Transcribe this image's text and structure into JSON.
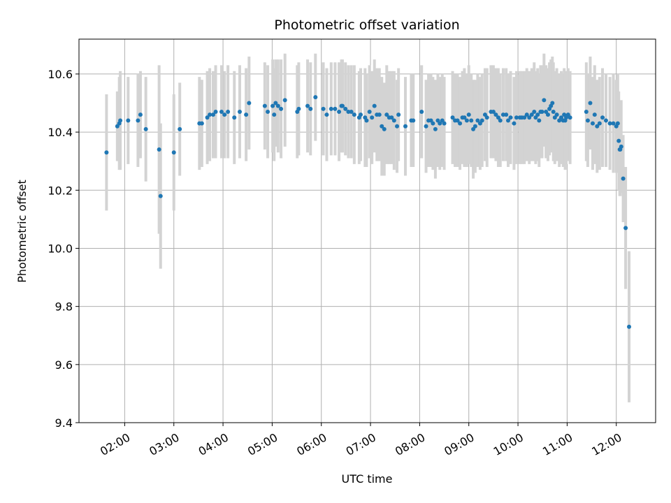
{
  "chart_data": {
    "type": "scatter",
    "title": "Photometric offset variation",
    "xlabel": "UTC time",
    "ylabel": "Photometric offset",
    "x_unit": "UTC hour of day",
    "xlim": [
      1.07,
      12.8
    ],
    "ylim": [
      9.4,
      10.72
    ],
    "x_ticks": [
      {
        "value": 2,
        "label": "02:00"
      },
      {
        "value": 3,
        "label": "03:00"
      },
      {
        "value": 4,
        "label": "04:00"
      },
      {
        "value": 5,
        "label": "05:00"
      },
      {
        "value": 6,
        "label": "06:00"
      },
      {
        "value": 7,
        "label": "07:00"
      },
      {
        "value": 8,
        "label": "08:00"
      },
      {
        "value": 9,
        "label": "09:00"
      },
      {
        "value": 10,
        "label": "10:00"
      },
      {
        "value": 11,
        "label": "11:00"
      },
      {
        "value": 12,
        "label": "12:00"
      }
    ],
    "y_ticks": [
      {
        "value": 9.4,
        "label": "9.4"
      },
      {
        "value": 9.6,
        "label": "9.6"
      },
      {
        "value": 9.8,
        "label": "9.8"
      },
      {
        "value": 10.0,
        "label": "10.0"
      },
      {
        "value": 10.2,
        "label": "10.2"
      },
      {
        "value": 10.4,
        "label": "10.4"
      },
      {
        "value": 10.6,
        "label": "10.6"
      }
    ],
    "grid": true,
    "point_color": "#1f77b4",
    "errorbar_color": "#d3d3d3",
    "series": [
      {
        "x": [
          1.63,
          1.85,
          1.89,
          1.91,
          2.07,
          2.27,
          2.32,
          2.43,
          2.7,
          2.73,
          3.0,
          3.12,
          3.52,
          3.57,
          3.68,
          3.73,
          3.8,
          3.85,
          3.97,
          4.03,
          4.1,
          4.23,
          4.34,
          4.47,
          4.53,
          4.85,
          4.91,
          5.01,
          5.04,
          5.07,
          5.12,
          5.18,
          5.26,
          5.51,
          5.54,
          5.72,
          5.78,
          5.88,
          6.04,
          6.11,
          6.2,
          6.28,
          6.36,
          6.41,
          6.43,
          6.49,
          6.55,
          6.61,
          6.67,
          6.77,
          6.8,
          6.89,
          6.92,
          6.98,
          7.03,
          7.08,
          7.13,
          7.18,
          7.23,
          7.28,
          7.33,
          7.38,
          7.43,
          7.48,
          7.54,
          7.57,
          7.71,
          7.83,
          7.87,
          8.04,
          8.13,
          8.18,
          8.23,
          8.27,
          8.32,
          8.37,
          8.41,
          8.46,
          8.5,
          8.67,
          8.72,
          8.77,
          8.82,
          8.87,
          8.91,
          8.96,
          9.0,
          9.05,
          9.09,
          9.13,
          9.18,
          9.23,
          9.27,
          9.33,
          9.37,
          9.45,
          9.5,
          9.55,
          9.6,
          9.64,
          9.7,
          9.76,
          9.8,
          9.85,
          9.92,
          9.97,
          10.04,
          10.08,
          10.13,
          10.18,
          10.23,
          10.28,
          10.33,
          10.36,
          10.4,
          10.43,
          10.46,
          10.49,
          10.53,
          10.57,
          10.61,
          10.64,
          10.67,
          10.7,
          10.72,
          10.75,
          10.79,
          10.84,
          10.88,
          10.92,
          10.94,
          10.96,
          10.98,
          11.02,
          11.06,
          11.39,
          11.42,
          11.47,
          11.52,
          11.56,
          11.61,
          11.66,
          11.72,
          11.79,
          11.87,
          11.94,
          12.0,
          12.03,
          12.05,
          12.07,
          12.08,
          12.1,
          12.14,
          12.19,
          12.26
        ],
        "y": [
          10.33,
          10.42,
          10.43,
          10.44,
          10.44,
          10.44,
          10.46,
          10.41,
          10.34,
          10.18,
          10.33,
          10.41,
          10.43,
          10.43,
          10.45,
          10.46,
          10.46,
          10.47,
          10.47,
          10.46,
          10.47,
          10.45,
          10.47,
          10.46,
          10.5,
          10.49,
          10.47,
          10.49,
          10.46,
          10.5,
          10.49,
          10.48,
          10.51,
          10.47,
          10.48,
          10.49,
          10.48,
          10.52,
          10.48,
          10.46,
          10.48,
          10.48,
          10.47,
          10.49,
          10.49,
          10.48,
          10.47,
          10.47,
          10.46,
          10.45,
          10.46,
          10.45,
          10.44,
          10.47,
          10.45,
          10.49,
          10.46,
          10.46,
          10.42,
          10.41,
          10.46,
          10.45,
          10.45,
          10.44,
          10.42,
          10.46,
          10.42,
          10.44,
          10.44,
          10.47,
          10.42,
          10.44,
          10.44,
          10.43,
          10.41,
          10.44,
          10.43,
          10.44,
          10.43,
          10.45,
          10.44,
          10.44,
          10.43,
          10.45,
          10.45,
          10.44,
          10.46,
          10.44,
          10.41,
          10.42,
          10.44,
          10.43,
          10.44,
          10.46,
          10.45,
          10.47,
          10.47,
          10.46,
          10.45,
          10.44,
          10.46,
          10.46,
          10.44,
          10.45,
          10.43,
          10.45,
          10.45,
          10.45,
          10.45,
          10.46,
          10.45,
          10.46,
          10.47,
          10.45,
          10.46,
          10.44,
          10.47,
          10.47,
          10.51,
          10.47,
          10.46,
          10.48,
          10.49,
          10.5,
          10.47,
          10.45,
          10.46,
          10.44,
          10.45,
          10.44,
          10.46,
          10.44,
          10.45,
          10.46,
          10.45,
          10.47,
          10.44,
          10.5,
          10.43,
          10.46,
          10.42,
          10.43,
          10.45,
          10.44,
          10.43,
          10.43,
          10.42,
          10.43,
          10.37,
          10.34,
          10.34,
          10.35,
          10.24,
          10.07,
          9.73
        ],
        "yerr": [
          0.2,
          0.12,
          0.16,
          0.17,
          0.15,
          0.16,
          0.15,
          0.18,
          0.29,
          0.25,
          0.2,
          0.16,
          0.16,
          0.15,
          0.16,
          0.16,
          0.15,
          0.16,
          0.16,
          0.15,
          0.16,
          0.16,
          0.16,
          0.16,
          0.16,
          0.15,
          0.16,
          0.16,
          0.16,
          0.15,
          0.16,
          0.17,
          0.16,
          0.16,
          0.16,
          0.16,
          0.16,
          0.15,
          0.16,
          0.16,
          0.16,
          0.16,
          0.17,
          0.16,
          0.16,
          0.16,
          0.16,
          0.16,
          0.17,
          0.16,
          0.16,
          0.17,
          0.16,
          0.16,
          0.16,
          0.16,
          0.16,
          0.16,
          0.17,
          0.16,
          0.17,
          0.16,
          0.16,
          0.17,
          0.16,
          0.16,
          0.17,
          0.16,
          0.16,
          0.16,
          0.16,
          0.16,
          0.16,
          0.16,
          0.17,
          0.16,
          0.16,
          0.16,
          0.16,
          0.16,
          0.16,
          0.16,
          0.16,
          0.16,
          0.17,
          0.16,
          0.17,
          0.16,
          0.17,
          0.16,
          0.16,
          0.16,
          0.16,
          0.16,
          0.17,
          0.16,
          0.16,
          0.16,
          0.17,
          0.16,
          0.16,
          0.16,
          0.16,
          0.16,
          0.16,
          0.16,
          0.16,
          0.16,
          0.16,
          0.16,
          0.16,
          0.16,
          0.17,
          0.16,
          0.16,
          0.16,
          0.16,
          0.16,
          0.16,
          0.16,
          0.16,
          0.16,
          0.16,
          0.16,
          0.17,
          0.16,
          0.16,
          0.16,
          0.16,
          0.16,
          0.16,
          0.17,
          0.16,
          0.16,
          0.16,
          0.17,
          0.16,
          0.16,
          0.16,
          0.17,
          0.16,
          0.16,
          0.17,
          0.16,
          0.16,
          0.17,
          0.16,
          0.17,
          0.17,
          0.16,
          0.16,
          0.16,
          0.15,
          0.21,
          0.26
        ]
      }
    ]
  }
}
